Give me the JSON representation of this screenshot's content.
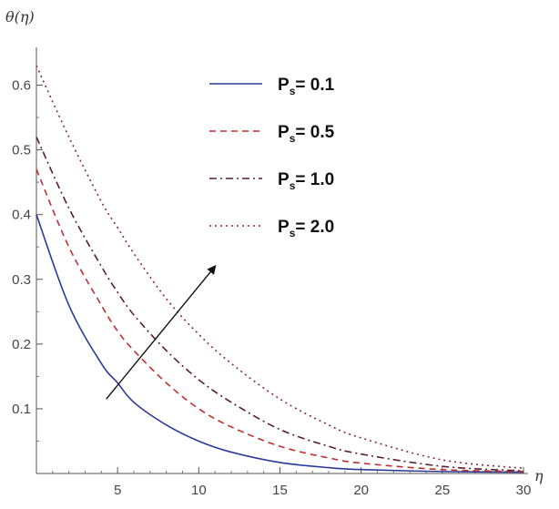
{
  "chart_data": {
    "type": "line",
    "title": "",
    "xlabel": "η",
    "ylabel": "θ(η)",
    "xlim": [
      0,
      30
    ],
    "ylim": [
      0,
      0.65
    ],
    "x_ticks": [
      5,
      10,
      15,
      20,
      25,
      30
    ],
    "y_ticks": [
      0.1,
      0.2,
      0.3,
      0.4,
      0.5,
      0.6
    ],
    "grid": false,
    "legend_position": "top-right",
    "series": [
      {
        "name": "Ps = 0.1",
        "legend_symbol": "P",
        "legend_subscript": "s",
        "legend_value": "= 0.1",
        "color": "#2b3a9a",
        "dash": "solid",
        "x": [
          0,
          2,
          4,
          5,
          6,
          8,
          10,
          12,
          15,
          18,
          20,
          25,
          30
        ],
        "y": [
          0.4,
          0.26,
          0.17,
          0.14,
          0.11,
          0.075,
          0.05,
          0.033,
          0.017,
          0.009,
          0.006,
          0.003,
          0.002
        ]
      },
      {
        "name": "Ps = 0.5",
        "legend_symbol": "P",
        "legend_subscript": "s",
        "legend_value": "= 0.5",
        "color": "#c03030",
        "dash": "dashed",
        "x": [
          0,
          2,
          4,
          5,
          6,
          8,
          10,
          12,
          15,
          18,
          20,
          25,
          30
        ],
        "y": [
          0.47,
          0.35,
          0.26,
          0.22,
          0.19,
          0.14,
          0.1,
          0.072,
          0.042,
          0.024,
          0.016,
          0.006,
          0.003
        ]
      },
      {
        "name": "Ps = 1.0",
        "legend_symbol": "P",
        "legend_subscript": "s",
        "legend_value": "= 1.0",
        "color": "#5a1e32",
        "dash": "dashdot",
        "x": [
          0,
          2,
          4,
          5,
          6,
          8,
          10,
          12,
          15,
          18,
          20,
          25,
          30
        ],
        "y": [
          0.52,
          0.41,
          0.32,
          0.28,
          0.245,
          0.19,
          0.145,
          0.11,
          0.068,
          0.042,
          0.03,
          0.011,
          0.004
        ]
      },
      {
        "name": "Ps = 2.0",
        "legend_symbol": "P",
        "legend_subscript": "s",
        "legend_value": "= 2.0",
        "color": "#8a2a3a",
        "dash": "dotted",
        "x": [
          0,
          2,
          4,
          5,
          6,
          8,
          10,
          12,
          15,
          18,
          20,
          25,
          30
        ],
        "y": [
          0.63,
          0.52,
          0.42,
          0.38,
          0.34,
          0.27,
          0.215,
          0.17,
          0.115,
          0.075,
          0.055,
          0.021,
          0.008
        ]
      }
    ],
    "annotations": [
      {
        "type": "arrow",
        "from": [
          4.3,
          0.115
        ],
        "to": [
          11,
          0.32
        ]
      }
    ]
  }
}
